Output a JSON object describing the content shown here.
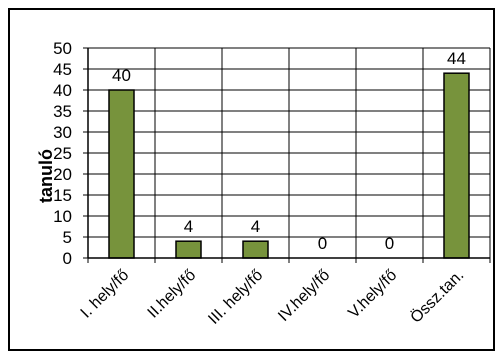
{
  "chart_data": {
    "type": "bar",
    "title": "",
    "xlabel": "",
    "ylabel": "tanuló",
    "categories": [
      "I. hely/fő",
      "II.hely/fő",
      "III. hely/fő",
      "IV.hely/fő",
      "V.hely/fő",
      "Össz.tan."
    ],
    "values": [
      40,
      4,
      4,
      0,
      0,
      44
    ],
    "data_labels": [
      "40",
      "4",
      "4",
      "0",
      "0",
      "44"
    ],
    "ylim": [
      0,
      50
    ],
    "yticks": [
      0,
      5,
      10,
      15,
      20,
      25,
      30,
      35,
      40,
      45,
      50
    ],
    "grid": true,
    "legend": "none",
    "bar_color": "#77933c",
    "bar_edge_color": "#000000"
  }
}
